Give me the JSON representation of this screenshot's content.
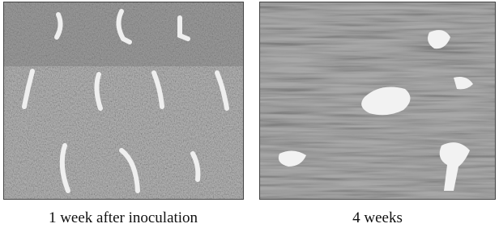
{
  "panels": [
    {
      "caption": "1 week after inoculation"
    },
    {
      "caption": "4 weeks"
    }
  ]
}
